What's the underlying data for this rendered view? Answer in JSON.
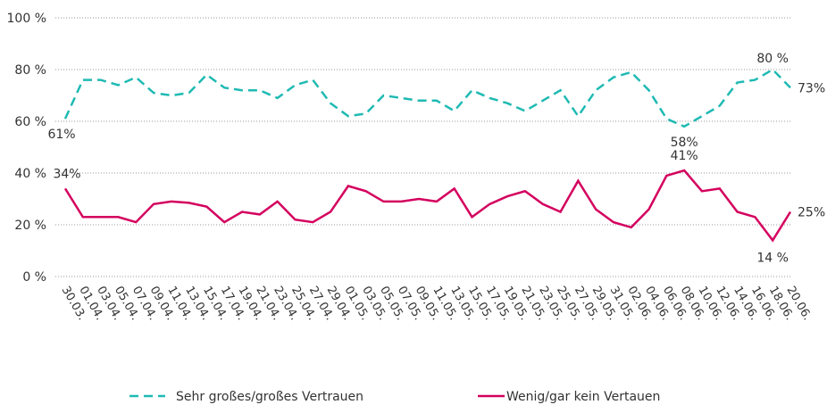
{
  "chart_data": {
    "type": "line",
    "categories": [
      "30.03.",
      "01.04.",
      "03.04.",
      "05.04.",
      "07.04.",
      "09.04.",
      "11.04.",
      "13.04.",
      "15.04.",
      "17.04.",
      "19.04.",
      "21.04.",
      "23.04.",
      "25.04.",
      "27.04.",
      "29.04.",
      "01.05.",
      "03.05.",
      "05.05.",
      "07.05.",
      "09.05.",
      "11.05.",
      "13.05.",
      "15.05.",
      "17.05.",
      "19.05.",
      "21.05.",
      "23.05.",
      "25.05.",
      "27.05.",
      "29.05.",
      "31.05.",
      "02.06.",
      "04.06.",
      "06.06.",
      "08.06.",
      "10.06.",
      "12.06.",
      "14.06.",
      "16.06.",
      "18.06.",
      "20.06."
    ],
    "series": [
      {
        "name": "Sehr großes/großes Vertrauen",
        "color": "#1fbab3",
        "dashed": true,
        "values": [
          61,
          76,
          76,
          74,
          77,
          71,
          70,
          71,
          78,
          73,
          72,
          72,
          69,
          74,
          76,
          67,
          62,
          63,
          70,
          69,
          68,
          68,
          64,
          72,
          69,
          67,
          64,
          68,
          72,
          62,
          72,
          77,
          79,
          72,
          61,
          58,
          62,
          66,
          75,
          76,
          80,
          73
        ],
        "value_labels": [
          "61%",
          null,
          null,
          null,
          null,
          null,
          null,
          null,
          null,
          null,
          null,
          null,
          null,
          null,
          null,
          null,
          null,
          null,
          null,
          null,
          null,
          null,
          null,
          null,
          null,
          null,
          null,
          null,
          null,
          null,
          null,
          null,
          null,
          null,
          null,
          "58%",
          null,
          null,
          null,
          null,
          "80 %",
          "73%"
        ]
      },
      {
        "name": "Wenig/gar kein Vertauen",
        "color": "#d4005e",
        "dashed": false,
        "values": [
          34,
          23,
          23,
          23,
          21,
          28,
          29,
          28.5,
          27,
          21,
          25,
          24,
          29,
          22,
          21,
          25,
          35,
          33,
          29,
          29,
          30,
          29,
          34,
          23,
          28,
          31,
          33,
          28,
          25,
          37,
          26,
          21,
          19,
          26,
          39,
          41,
          33,
          34,
          25,
          23,
          14,
          25
        ],
        "value_labels": [
          "34%",
          null,
          null,
          null,
          null,
          null,
          null,
          null,
          null,
          null,
          null,
          null,
          null,
          null,
          null,
          null,
          null,
          null,
          null,
          null,
          null,
          null,
          null,
          null,
          null,
          null,
          null,
          null,
          null,
          null,
          null,
          null,
          null,
          null,
          null,
          "41%",
          null,
          null,
          null,
          null,
          "14 %",
          "25%"
        ]
      }
    ],
    "ylim": [
      0,
      100
    ],
    "yticks": [
      {
        "value": 0,
        "label": "0 %"
      },
      {
        "value": 20,
        "label": "20 %"
      },
      {
        "value": 40,
        "label": "40 %"
      },
      {
        "value": 60,
        "label": "60 %"
      },
      {
        "value": 80,
        "label": "80 %"
      },
      {
        "value": 100,
        "label": "100 %"
      }
    ],
    "grid": true,
    "legend": "bottom"
  }
}
